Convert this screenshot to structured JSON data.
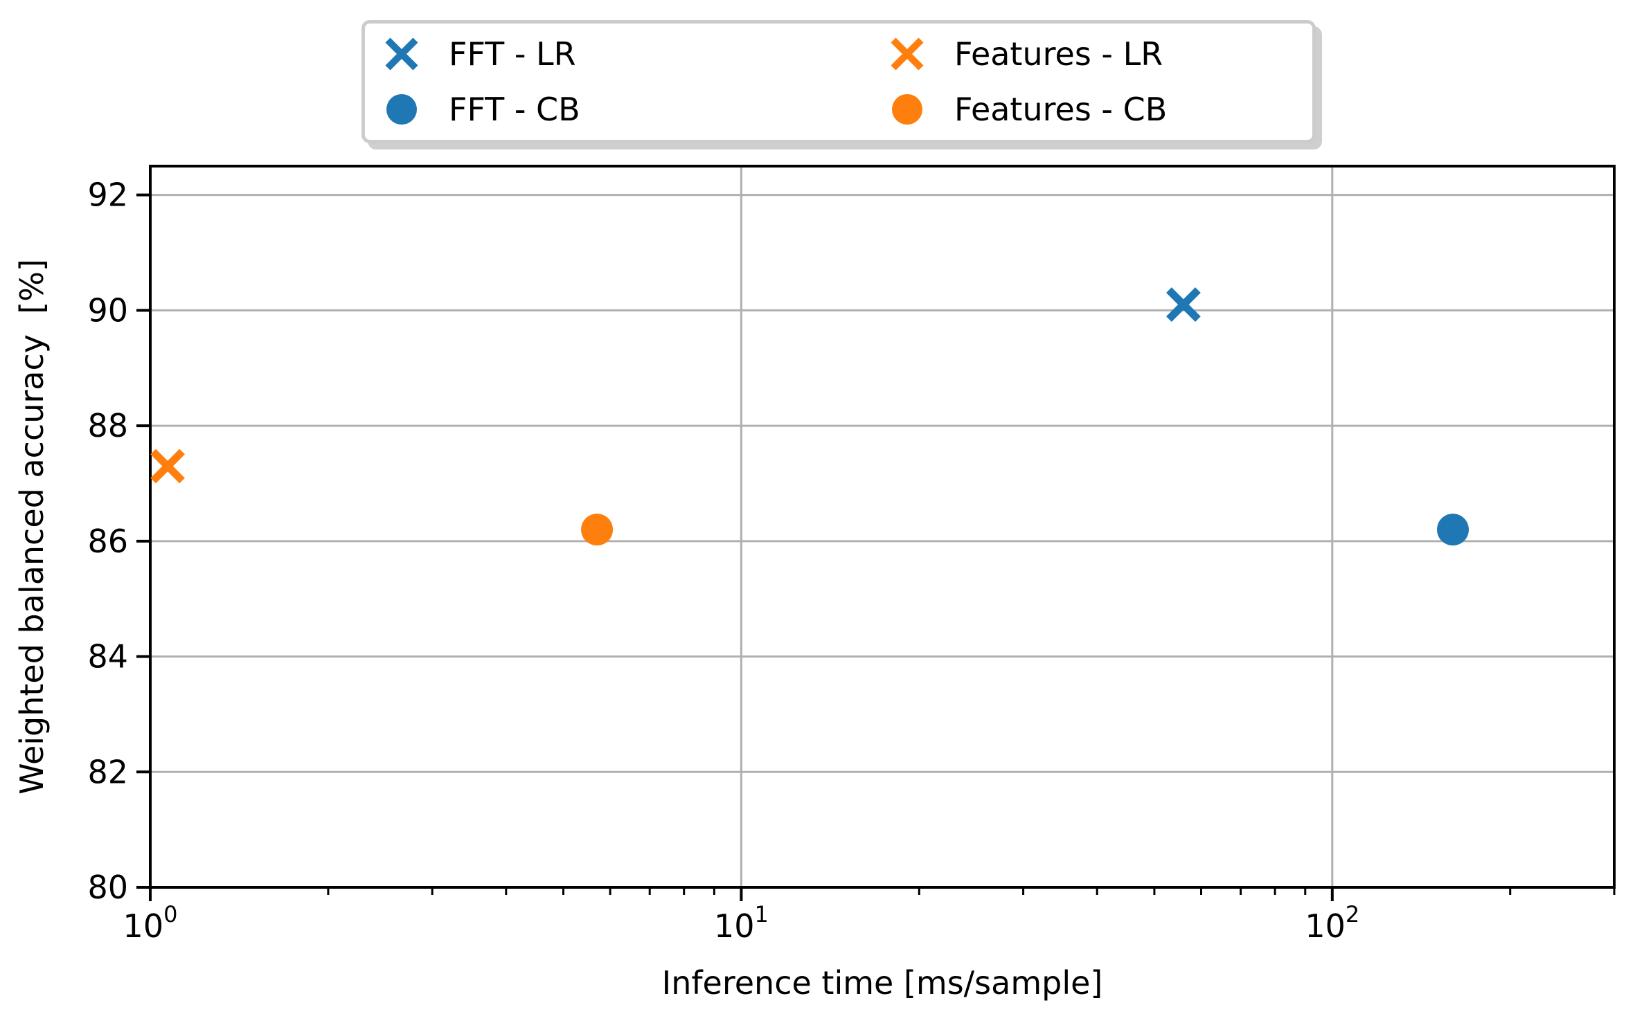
{
  "colors": {
    "blue": "#1f77b4",
    "orange": "#ff7f0e",
    "grid": "#b0b0b0",
    "legend_border": "#cccccc",
    "legend_shadow": "#cfcfcf",
    "axis": "#000000"
  },
  "chart_data": {
    "type": "scatter",
    "title": "",
    "xlabel": "Inference time [ms/sample]",
    "ylabel": "Weighted balanced accuracy  [%]",
    "x_scale": "log",
    "xlim": [
      1,
      300
    ],
    "ylim": [
      80,
      92.5
    ],
    "grid": true,
    "legend_position": "top-center-outside",
    "x_ticks": [
      {
        "base": "10",
        "exp": "0",
        "value": 1
      },
      {
        "base": "10",
        "exp": "1",
        "value": 10
      },
      {
        "base": "10",
        "exp": "2",
        "value": 100
      }
    ],
    "y_ticks": [
      80,
      82,
      84,
      86,
      88,
      90,
      92
    ],
    "series": [
      {
        "name": "FFT - LR",
        "marker": "x",
        "color": "#1f77b4",
        "points": [
          {
            "x": 56,
            "y": 90.1
          }
        ]
      },
      {
        "name": "FFT - CB",
        "marker": "circle",
        "color": "#1f77b4",
        "points": [
          {
            "x": 160,
            "y": 86.2
          }
        ]
      },
      {
        "name": "Features - LR",
        "marker": "x",
        "color": "#ff7f0e",
        "points": [
          {
            "x": 1.07,
            "y": 87.3
          }
        ]
      },
      {
        "name": "Features - CB",
        "marker": "circle",
        "color": "#ff7f0e",
        "points": [
          {
            "x": 5.7,
            "y": 86.2
          }
        ]
      }
    ]
  }
}
